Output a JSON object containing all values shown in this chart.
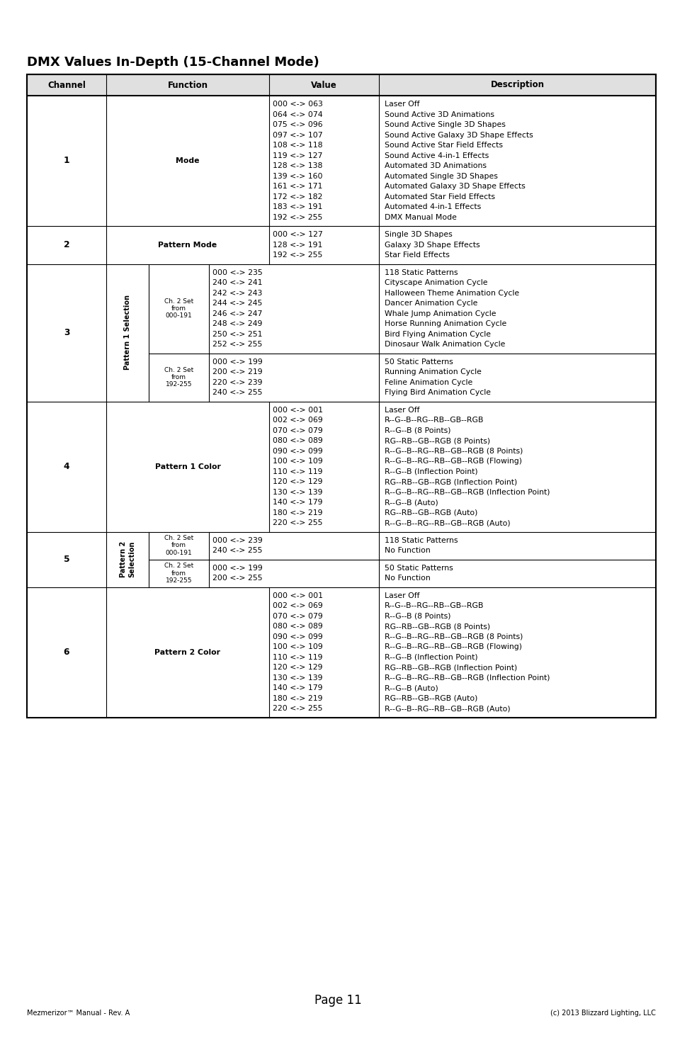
{
  "title": "DMX Values In-Depth (15-Channel Mode)",
  "page_num": "Page 11",
  "footer_left": "Mezmerizor™ Manual - Rev. A",
  "footer_right": "(c) 2013 Blizzard Lighting, LLC",
  "header_cols": [
    "Channel",
    "Function",
    "Value",
    "Description"
  ],
  "rows": [
    {
      "channel": "1",
      "function": "Mode",
      "values": [
        "000 <-> 063",
        "064 <-> 074",
        "075 <-> 096",
        "097 <-> 107",
        "108 <-> 118",
        "119 <-> 127",
        "128 <-> 138",
        "139 <-> 160",
        "161 <-> 171",
        "172 <-> 182",
        "183 <-> 191",
        "192 <-> 255"
      ],
      "descriptions": [
        "Laser Off",
        "Sound Active 3D Animations",
        "Sound Active Single 3D Shapes",
        "Sound Active Galaxy 3D Shape Effects",
        "Sound Active Star Field Effects",
        "Sound Active 4-in-1 Effects",
        "Automated 3D Animations",
        "Automated Single 3D Shapes",
        "Automated Galaxy 3D Shape Effects",
        "Automated Star Field Effects",
        "Automated 4-in-1 Effects",
        "DMX Manual Mode"
      ]
    },
    {
      "channel": "2",
      "function": "Pattern Mode",
      "values": [
        "000 <-> 127",
        "128 <-> 191",
        "192 <-> 255"
      ],
      "descriptions": [
        "Single 3D Shapes",
        "Galaxy 3D Shape Effects",
        "Star Field Effects"
      ]
    },
    {
      "channel": "3",
      "function": "Pattern 1 Selection",
      "subfunction1": "Ch. 2 Set\nfrom\n000-191",
      "subfunction2": "Ch. 2 Set\nfrom\n192-255",
      "values_sub1": [
        "000 <-> 235",
        "240 <-> 241",
        "242 <-> 243",
        "244 <-> 245",
        "246 <-> 247",
        "248 <-> 249",
        "250 <-> 251",
        "252 <-> 255"
      ],
      "desc_sub1": [
        "118 Static Patterns",
        "Cityscape Animation Cycle",
        "Halloween Theme Animation Cycle",
        "Dancer Animation Cycle",
        "Whale Jump Animation Cycle",
        "Horse Running Animation Cycle",
        "Bird Flying Animation Cycle",
        "Dinosaur Walk Animation Cycle"
      ],
      "values_sub2": [
        "000 <-> 199",
        "200 <-> 219",
        "220 <-> 239",
        "240 <-> 255"
      ],
      "desc_sub2": [
        "50 Static Patterns",
        "Running Animation Cycle",
        "Feline Animation Cycle",
        "Flying Bird Animation Cycle"
      ]
    },
    {
      "channel": "4",
      "function": "Pattern 1 Color",
      "values": [
        "000 <-> 001",
        "002 <-> 069",
        "070 <-> 079",
        "080 <-> 089",
        "090 <-> 099",
        "100 <-> 109",
        "110 <-> 119",
        "120 <-> 129",
        "130 <-> 139",
        "140 <-> 179",
        "180 <-> 219",
        "220 <-> 255"
      ],
      "descriptions": [
        "Laser Off",
        "R--G--B--RG--RB--GB--RGB",
        "R--G--B (8 Points)",
        "RG--RB--GB--RGB (8 Points)",
        "R--G--B--RG--RB--GB--RGB (8 Points)",
        "R--G--B--RG--RB--GB--RGB (Flowing)",
        "R--G--B (Inflection Point)",
        "RG--RB--GB--RGB (Inflection Point)",
        "R--G--B--RG--RB--GB--RGB (Inflection Point)",
        "R--G--B (Auto)",
        "RG--RB--GB--RGB (Auto)",
        "R--G--B--RG--RB--GB--RGB (Auto)"
      ]
    },
    {
      "channel": "5",
      "function": "Pattern 2\nSelection",
      "subfunction1": "Ch. 2 Set\nfrom\n000-191",
      "subfunction2": "Ch. 2 Set\nfrom\n192-255",
      "values_sub1": [
        "000 <-> 239",
        "240 <-> 255"
      ],
      "desc_sub1": [
        "118 Static Patterns",
        "No Function"
      ],
      "values_sub2": [
        "000 <-> 199",
        "200 <-> 255"
      ],
      "desc_sub2": [
        "50 Static Patterns",
        "No Function"
      ]
    },
    {
      "channel": "6",
      "function": "Pattern 2 Color",
      "values": [
        "000 <-> 001",
        "002 <-> 069",
        "070 <-> 079",
        "080 <-> 089",
        "090 <-> 099",
        "100 <-> 109",
        "110 <-> 119",
        "120 <-> 129",
        "130 <-> 139",
        "140 <-> 179",
        "180 <-> 219",
        "220 <-> 255"
      ],
      "descriptions": [
        "Laser Off",
        "R--G--B--RG--RB--GB--RGB",
        "R--G--B (8 Points)",
        "RG--RB--GB--RGB (8 Points)",
        "R--G--B--RG--RB--GB--RGB (8 Points)",
        "R--G--B--RG--RB--GB--RGB (Flowing)",
        "R--G--B (Inflection Point)",
        "RG--RB--GB--RGB (Inflection Point)",
        "R--G--B--RG--RB--GB--RGB (Inflection Point)",
        "R--G--B (Auto)",
        "RG--RB--GB--RGB (Auto)",
        "R--G--B--RG--RB--GB--RGB (Auto)"
      ]
    }
  ],
  "bg_color": "#ffffff",
  "font_size_title": 13,
  "font_size_header": 8.5,
  "font_size_body": 7.8,
  "font_size_sub": 6.5,
  "font_size_footer": 7.0,
  "font_size_page": 12
}
